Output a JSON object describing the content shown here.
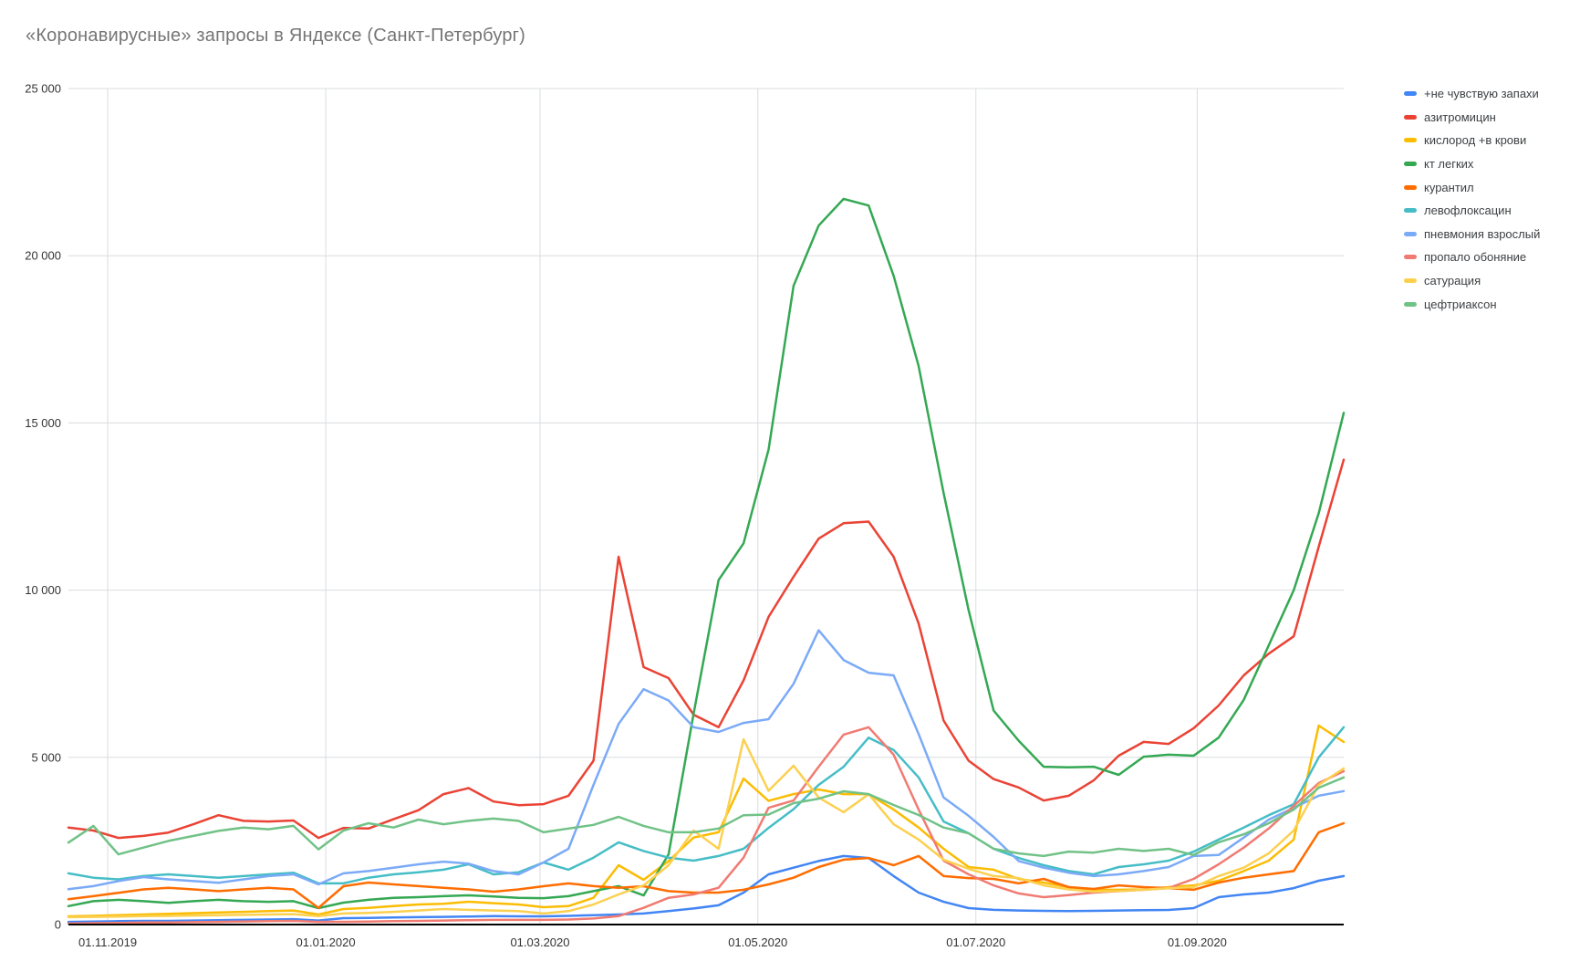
{
  "title": "«Коронавирусные» запросы в Яндексе (Санкт-Петербург)",
  "chart_data": {
    "type": "line",
    "title": "«Коронавирусные» запросы в Яндексе (Санкт-Петербург)",
    "xlabel": "",
    "ylabel": "",
    "ylim": [
      0,
      25000
    ],
    "grid": true,
    "legend_position": "right",
    "y_ticks": [
      {
        "label": "0",
        "value": 0
      },
      {
        "label": "5 000",
        "value": 5000
      },
      {
        "label": "10 000",
        "value": 10000
      },
      {
        "label": "15 000",
        "value": 15000
      },
      {
        "label": "20 000",
        "value": 20000
      },
      {
        "label": "25 000",
        "value": 25000
      }
    ],
    "x_ticks": [
      {
        "label": "01.11.2019",
        "week_pos": 1.57
      },
      {
        "label": "01.01.2020",
        "week_pos": 10.29
      },
      {
        "label": "01.03.2020",
        "week_pos": 18.86
      },
      {
        "label": "01.05.2020",
        "week_pos": 27.57
      },
      {
        "label": "01.07.2020",
        "week_pos": 36.29
      },
      {
        "label": "01.09.2020",
        "week_pos": 45.14
      }
    ],
    "x_weeks": [
      "21.10.2019",
      "28.10.2019",
      "04.11.2019",
      "11.11.2019",
      "18.11.2019",
      "25.11.2019",
      "02.12.2019",
      "09.12.2019",
      "16.12.2019",
      "23.12.2019",
      "30.12.2019",
      "06.01.2020",
      "13.01.2020",
      "20.01.2020",
      "27.01.2020",
      "03.02.2020",
      "10.02.2020",
      "17.02.2020",
      "24.02.2020",
      "02.03.2020",
      "09.03.2020",
      "16.03.2020",
      "23.03.2020",
      "30.03.2020",
      "06.04.2020",
      "13.04.2020",
      "20.04.2020",
      "27.04.2020",
      "04.05.2020",
      "11.05.2020",
      "18.05.2020",
      "25.05.2020",
      "01.06.2020",
      "08.06.2020",
      "15.06.2020",
      "22.06.2020",
      "29.06.2020",
      "06.07.2020",
      "13.07.2020",
      "20.07.2020",
      "27.07.2020",
      "03.08.2020",
      "10.08.2020",
      "17.08.2020",
      "24.08.2020",
      "31.08.2020",
      "07.09.2020",
      "14.09.2020",
      "21.09.2020",
      "28.09.2020",
      "05.10.2020",
      "12.10.2020"
    ],
    "series": [
      {
        "name": "+не чувствую запахи",
        "color": "#4285F4",
        "values": [
          80,
          90,
          100,
          110,
          110,
          120,
          130,
          140,
          150,
          160,
          120,
          190,
          200,
          210,
          220,
          230,
          240,
          250,
          245,
          245,
          260,
          280,
          300,
          330,
          400,
          480,
          575,
          955,
          1500,
          1700,
          1900,
          2050,
          1990,
          1450,
          955,
          680,
          490,
          440,
          420,
          410,
          400,
          410,
          420,
          430,
          437,
          490,
          820,
          900,
          955,
          1090,
          1310,
          1450
        ]
      },
      {
        "name": "азитромицин",
        "color": "#EA4335",
        "values": [
          2900,
          2810,
          2590,
          2650,
          2750,
          3000,
          3270,
          3100,
          3080,
          3110,
          2590,
          2890,
          2870,
          3150,
          3420,
          3900,
          4080,
          3680,
          3570,
          3600,
          3850,
          4900,
          11000,
          7700,
          7370,
          6275,
          5900,
          7300,
          9200,
          10400,
          11540,
          12000,
          12050,
          11000,
          9000,
          6100,
          4900,
          4350,
          4100,
          3710,
          3850,
          4310,
          5050,
          5460,
          5400,
          5870,
          6550,
          7450,
          8100,
          8620,
          11300,
          13900
        ]
      },
      {
        "name": "кислород +в крови",
        "color": "#FBBC04",
        "values": [
          245,
          260,
          280,
          300,
          320,
          340,
          360,
          380,
          400,
          420,
          300,
          464,
          500,
          550,
          600,
          620,
          682,
          640,
          600,
          518,
          550,
          800,
          1774,
          1337,
          1900,
          2600,
          2760,
          4365,
          3700,
          3900,
          4040,
          3900,
          3900,
          3440,
          2900,
          2265,
          1720,
          1640,
          1365,
          1255,
          1120,
          1040,
          1040,
          1050,
          1120,
          1170,
          1310,
          1600,
          1910,
          2540,
          5950,
          5460
        ]
      },
      {
        "name": "кт легких",
        "color": "#34A853",
        "values": [
          550,
          700,
          740,
          700,
          650,
          700,
          740,
          700,
          680,
          700,
          490,
          655,
          740,
          800,
          820,
          850,
          873,
          840,
          800,
          790,
          850,
          1000,
          1150,
          870,
          2100,
          6300,
          10300,
          11400,
          14200,
          19100,
          20900,
          21700,
          21500,
          19400,
          16700,
          12900,
          9400,
          6400,
          5500,
          4720,
          4700,
          4720,
          4475,
          5020,
          5080,
          5050,
          5590,
          6720,
          8350,
          10000,
          12300,
          15300
        ]
      },
      {
        "name": "курантил",
        "color": "#FF6D01",
        "values": [
          760,
          850,
          950,
          1050,
          1100,
          1050,
          1000,
          1050,
          1100,
          1050,
          500,
          1146,
          1255,
          1200,
          1150,
          1100,
          1050,
          982,
          1050,
          1146,
          1230,
          1150,
          1100,
          1146,
          1000,
          955,
          955,
          1040,
          1200,
          1400,
          1720,
          1940,
          1990,
          1775,
          2050,
          1450,
          1390,
          1365,
          1230,
          1365,
          1120,
          1065,
          1170,
          1120,
          1090,
          1040,
          1255,
          1400,
          1500,
          1600,
          2760,
          3030
        ]
      },
      {
        "name": "левофлоксацин",
        "color": "#46BDC6",
        "values": [
          1530,
          1400,
          1350,
          1450,
          1500,
          1450,
          1400,
          1450,
          1500,
          1550,
          1230,
          1230,
          1400,
          1500,
          1560,
          1640,
          1800,
          1500,
          1560,
          1855,
          1640,
          2000,
          2460,
          2200,
          2000,
          1910,
          2050,
          2265,
          2890,
          3450,
          4175,
          4720,
          5590,
          5220,
          4400,
          3080,
          2730,
          2265,
          1990,
          1775,
          1600,
          1500,
          1720,
          1800,
          1910,
          2180,
          2540,
          2900,
          3270,
          3600,
          5000,
          5900
        ]
      },
      {
        "name": "пневмония взрослый",
        "color": "#7BAAF7",
        "values": [
          1060,
          1150,
          1300,
          1420,
          1350,
          1300,
          1250,
          1350,
          1450,
          1500,
          1200,
          1530,
          1600,
          1700,
          1800,
          1880,
          1820,
          1600,
          1500,
          1855,
          2265,
          4175,
          6000,
          7040,
          6700,
          5900,
          5760,
          6030,
          6140,
          7200,
          8800,
          7910,
          7530,
          7450,
          5700,
          3800,
          3250,
          2620,
          1900,
          1700,
          1550,
          1450,
          1500,
          1600,
          1720,
          2050,
          2080,
          2600,
          3140,
          3490,
          3850,
          3990
        ]
      },
      {
        "name": "пропало обоняние",
        "color": "#F07B72",
        "values": [
          30,
          40,
          50,
          60,
          60,
          70,
          80,
          90,
          100,
          110,
          80,
          82,
          90,
          100,
          110,
          120,
          130,
          140,
          140,
          140,
          150,
          180,
          250,
          500,
          800,
          900,
          1100,
          2000,
          3490,
          3710,
          4720,
          5680,
          5900,
          5080,
          3440,
          1910,
          1500,
          1170,
          930,
          820,
          880,
          955,
          1000,
          1040,
          1090,
          1365,
          1800,
          2300,
          2870,
          3550,
          4230,
          4585
        ]
      },
      {
        "name": "сатурация",
        "color": "#FCD04F",
        "values": [
          220,
          230,
          240,
          250,
          260,
          270,
          280,
          290,
          300,
          310,
          250,
          330,
          350,
          380,
          420,
          464,
          440,
          420,
          400,
          330,
          400,
          600,
          900,
          1170,
          1775,
          2810,
          2265,
          5540,
          4000,
          4750,
          3800,
          3360,
          3900,
          3000,
          2540,
          1940,
          1665,
          1450,
          1390,
          1170,
          1050,
          985,
          1000,
          1040,
          1090,
          1120,
          1450,
          1700,
          2130,
          2810,
          4175,
          4670
        ]
      },
      {
        "name": "цефтриаксон",
        "color": "#71C287",
        "values": [
          2450,
          2950,
          2100,
          2300,
          2500,
          2650,
          2800,
          2900,
          2850,
          2950,
          2250,
          2810,
          3030,
          2900,
          3140,
          3000,
          3100,
          3170,
          3100,
          2760,
          2870,
          2980,
          3220,
          2950,
          2760,
          2760,
          2870,
          3270,
          3290,
          3630,
          3765,
          3985,
          3900,
          3575,
          3275,
          2900,
          2730,
          2265,
          2130,
          2050,
          2180,
          2150,
          2265,
          2200,
          2265,
          2080,
          2460,
          2700,
          3030,
          3440,
          4090,
          4400
        ]
      }
    ]
  }
}
